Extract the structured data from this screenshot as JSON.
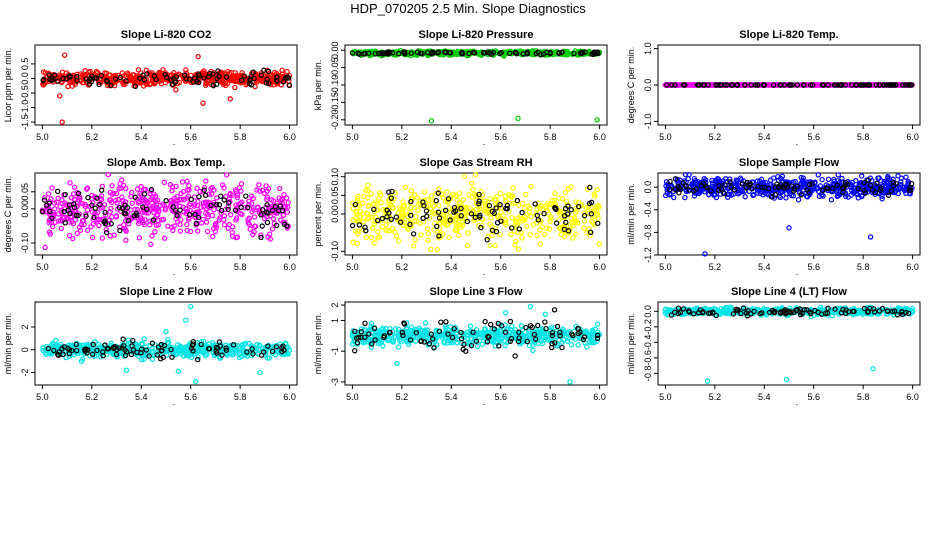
{
  "figure_title": "HDP_070205  2.5 Min. Slope Diagnostics",
  "chart_data": [
    {
      "type": "scatter",
      "title": "Slope Li-820 CO2",
      "ylabel": "Licor ppm per min.",
      "color": "#ff0000",
      "xlim": [
        4.97,
        6.03
      ],
      "ylim": [
        -1.6,
        1.15
      ],
      "xticks": [
        "5.0",
        "5.2",
        "5.4",
        "5.6",
        "5.8",
        "6.0"
      ],
      "yticks": [
        {
          "v": -1.5,
          "l": "-1.5"
        },
        {
          "v": -1.0,
          "l": "-1.0"
        },
        {
          "v": -0.5,
          "l": "-0.5"
        },
        {
          "v": 0.0,
          "l": "0.0"
        },
        {
          "v": 0.5,
          "l": "0.5"
        }
      ],
      "center": 0.0,
      "spread": 0.18,
      "black_spread": 0.15,
      "outliers": [
        [
          5.08,
          -1.5
        ],
        [
          5.09,
          0.8
        ],
        [
          5.07,
          -0.6
        ],
        [
          5.63,
          0.75
        ],
        [
          5.65,
          -0.85
        ],
        [
          5.76,
          -0.7
        ]
      ]
    },
    {
      "type": "scatter",
      "title": "Slope Li-820 Pressure",
      "ylabel": "kPa per min.",
      "color": "#00cc00",
      "xlim": [
        4.97,
        6.03
      ],
      "ylim": [
        -0.215,
        0.015
      ],
      "xticks": [
        "5.0",
        "5.2",
        "5.4",
        "5.6",
        "5.8",
        "6.0"
      ],
      "yticks": [
        {
          "v": 0.0,
          "l": "0.00"
        },
        {
          "v": -0.05,
          "l": "-0.05"
        },
        {
          "v": -0.1,
          "l": "-0.10"
        },
        {
          "v": -0.15,
          "l": "-0.15"
        },
        {
          "v": -0.2,
          "l": "-0.20"
        }
      ],
      "center": -0.008,
      "spread": 0.004,
      "black_spread": 0.003,
      "outliers": [
        [
          5.32,
          -0.203
        ],
        [
          5.67,
          -0.196
        ],
        [
          5.99,
          -0.2
        ]
      ]
    },
    {
      "type": "scatter",
      "title": "Slope Li-820 Temp.",
      "ylabel": "degrees C per min.",
      "color": "#ff00ff",
      "xlim": [
        4.97,
        6.03
      ],
      "ylim": [
        -1.1,
        1.1
      ],
      "xticks": [
        "5.0",
        "5.2",
        "5.4",
        "5.6",
        "5.8",
        "6.0"
      ],
      "yticks": [
        {
          "v": -1.0,
          "l": "-1.0"
        },
        {
          "v": 0.0,
          "l": "0.0"
        },
        {
          "v": 1.0,
          "l": "1.0"
        }
      ],
      "center": 0.0,
      "spread": 0.0,
      "black_spread": 0.0,
      "outliers": []
    },
    {
      "type": "scatter",
      "title": "Slope Amb. Box Temp.",
      "ylabel": "degrees C per min.",
      "color": "#ff00ff",
      "xlim": [
        4.97,
        6.03
      ],
      "ylim": [
        -0.135,
        0.105
      ],
      "xticks": [
        "5.0",
        "5.2",
        "5.4",
        "5.6",
        "5.8",
        "6.0"
      ],
      "yticks": [
        {
          "v": -0.1,
          "l": "-0.10"
        },
        {
          "v": 0.0,
          "l": "0.00"
        },
        {
          "v": 0.05,
          "l": "0.05"
        }
      ],
      "center": 0.0,
      "spread": 0.055,
      "black_spread": 0.04,
      "outliers": []
    },
    {
      "type": "scatter",
      "title": "Slope Gas Stream RH",
      "ylabel": "percent per min.",
      "color": "#ffff00",
      "xlim": [
        4.97,
        6.03
      ],
      "ylim": [
        -0.11,
        0.11
      ],
      "xticks": [
        "5.0",
        "5.2",
        "5.4",
        "5.6",
        "5.8",
        "6.0"
      ],
      "yticks": [
        {
          "v": -0.1,
          "l": "-0.10"
        },
        {
          "v": 0.0,
          "l": "0.00"
        },
        {
          "v": 0.05,
          "l": "0.05"
        },
        {
          "v": 0.1,
          "l": "0.10"
        }
      ],
      "center": 0.0,
      "spread": 0.05,
      "black_spread": 0.04,
      "outliers": []
    },
    {
      "type": "scatter",
      "title": "Slope Sample Flow",
      "ylabel": "ml/min per min.",
      "color": "#0000ff",
      "xlim": [
        4.97,
        6.03
      ],
      "ylim": [
        -1.2,
        0.25
      ],
      "xticks": [
        "5.0",
        "5.2",
        "5.4",
        "5.6",
        "5.8",
        "6.0"
      ],
      "yticks": [
        {
          "v": -1.2,
          "l": "-1.2"
        },
        {
          "v": -0.8,
          "l": "-0.8"
        },
        {
          "v": -0.4,
          "l": "-0.4"
        },
        {
          "v": 0.0,
          "l": "0.0"
        }
      ],
      "center": 0.0,
      "spread": 0.12,
      "black_spread": 0.1,
      "outliers": [
        [
          5.16,
          -1.18
        ],
        [
          5.5,
          -0.72
        ],
        [
          5.83,
          -0.88
        ]
      ]
    },
    {
      "type": "scatter",
      "title": "Slope Line 2 Flow",
      "ylabel": "ml/min per min.",
      "color": "#00e5e5",
      "xlim": [
        4.97,
        6.03
      ],
      "ylim": [
        -3.1,
        4.2
      ],
      "xticks": [
        "5.0",
        "5.2",
        "5.4",
        "5.6",
        "5.8",
        "6.0"
      ],
      "yticks": [
        {
          "v": -2,
          "l": "-2"
        },
        {
          "v": 0,
          "l": "0"
        },
        {
          "v": 2,
          "l": "2"
        }
      ],
      "center": 0.0,
      "spread": 0.45,
      "black_spread": 0.5,
      "outliers": [
        [
          5.6,
          3.8
        ],
        [
          5.62,
          -2.8
        ],
        [
          5.55,
          -1.9
        ],
        [
          5.34,
          -1.8
        ],
        [
          5.5,
          1.6
        ],
        [
          5.58,
          2.6
        ],
        [
          5.88,
          -2.0
        ]
      ]
    },
    {
      "type": "scatter",
      "title": "Slope Line 3 Flow",
      "ylabel": "ml/min per min.",
      "color": "#00e5e5",
      "xlim": [
        4.97,
        6.03
      ],
      "ylim": [
        -3.2,
        2.2
      ],
      "xticks": [
        "5.0",
        "5.2",
        "5.4",
        "5.6",
        "5.8",
        "6.0"
      ],
      "yticks": [
        {
          "v": -3,
          "l": "-3"
        },
        {
          "v": -1,
          "l": "-1"
        },
        {
          "v": 1,
          "l": "1"
        },
        {
          "v": 2,
          "l": "2"
        }
      ],
      "center": 0.0,
      "spread": 0.45,
      "black_spread": 0.7,
      "outliers": [
        [
          5.88,
          -3.0
        ],
        [
          5.72,
          1.9
        ],
        [
          5.18,
          -1.8
        ],
        [
          5.62,
          1.5
        ],
        [
          5.78,
          1.4
        ]
      ]
    },
    {
      "type": "scatter",
      "title": "Slope Line 4 (LT) Flow",
      "ylabel": "ml/min per min.",
      "color": "#00e5e5",
      "xlim": [
        4.97,
        6.03
      ],
      "ylim": [
        -0.95,
        0.12
      ],
      "xticks": [
        "5.0",
        "5.2",
        "5.4",
        "5.6",
        "5.8",
        "6.0"
      ],
      "yticks": [
        {
          "v": -0.8,
          "l": "-0.8"
        },
        {
          "v": -0.6,
          "l": "-0.6"
        },
        {
          "v": -0.4,
          "l": "-0.4"
        },
        {
          "v": -0.2,
          "l": "-0.2"
        },
        {
          "v": 0.0,
          "l": "0.0"
        }
      ],
      "center": 0.0,
      "spread": 0.03,
      "black_spread": 0.03,
      "outliers": [
        [
          5.17,
          -0.9
        ],
        [
          5.49,
          -0.88
        ],
        [
          5.84,
          -0.74
        ]
      ]
    }
  ]
}
